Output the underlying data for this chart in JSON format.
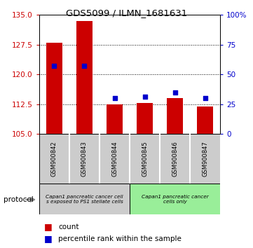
{
  "title": "GDS5099 / ILMN_1681631",
  "samples": [
    "GSM900842",
    "GSM900843",
    "GSM900844",
    "GSM900845",
    "GSM900846",
    "GSM900847"
  ],
  "counts": [
    128.0,
    133.5,
    112.5,
    112.8,
    114.0,
    112.0
  ],
  "percentiles": [
    57,
    57,
    30,
    31,
    35,
    30
  ],
  "ylim_left": [
    105,
    135
  ],
  "ylim_right": [
    0,
    100
  ],
  "yticks_left": [
    105,
    112.5,
    120,
    127.5,
    135
  ],
  "yticks_right": [
    0,
    25,
    50,
    75,
    100
  ],
  "bar_color": "#cc0000",
  "dot_color": "#0000cc",
  "group1_label": "Capan1 pancreatic cancer cell\ns exposed to PS1 stellate cells",
  "group2_label": "Capan1 pancreatic cancer\ncells only",
  "group1_color": "#cccccc",
  "group2_color": "#99ee99",
  "protocol_label": "protocol",
  "legend_count": "count",
  "legend_pct": "percentile rank within the sample",
  "sample_bg_color": "#cccccc",
  "bar_width": 0.55
}
